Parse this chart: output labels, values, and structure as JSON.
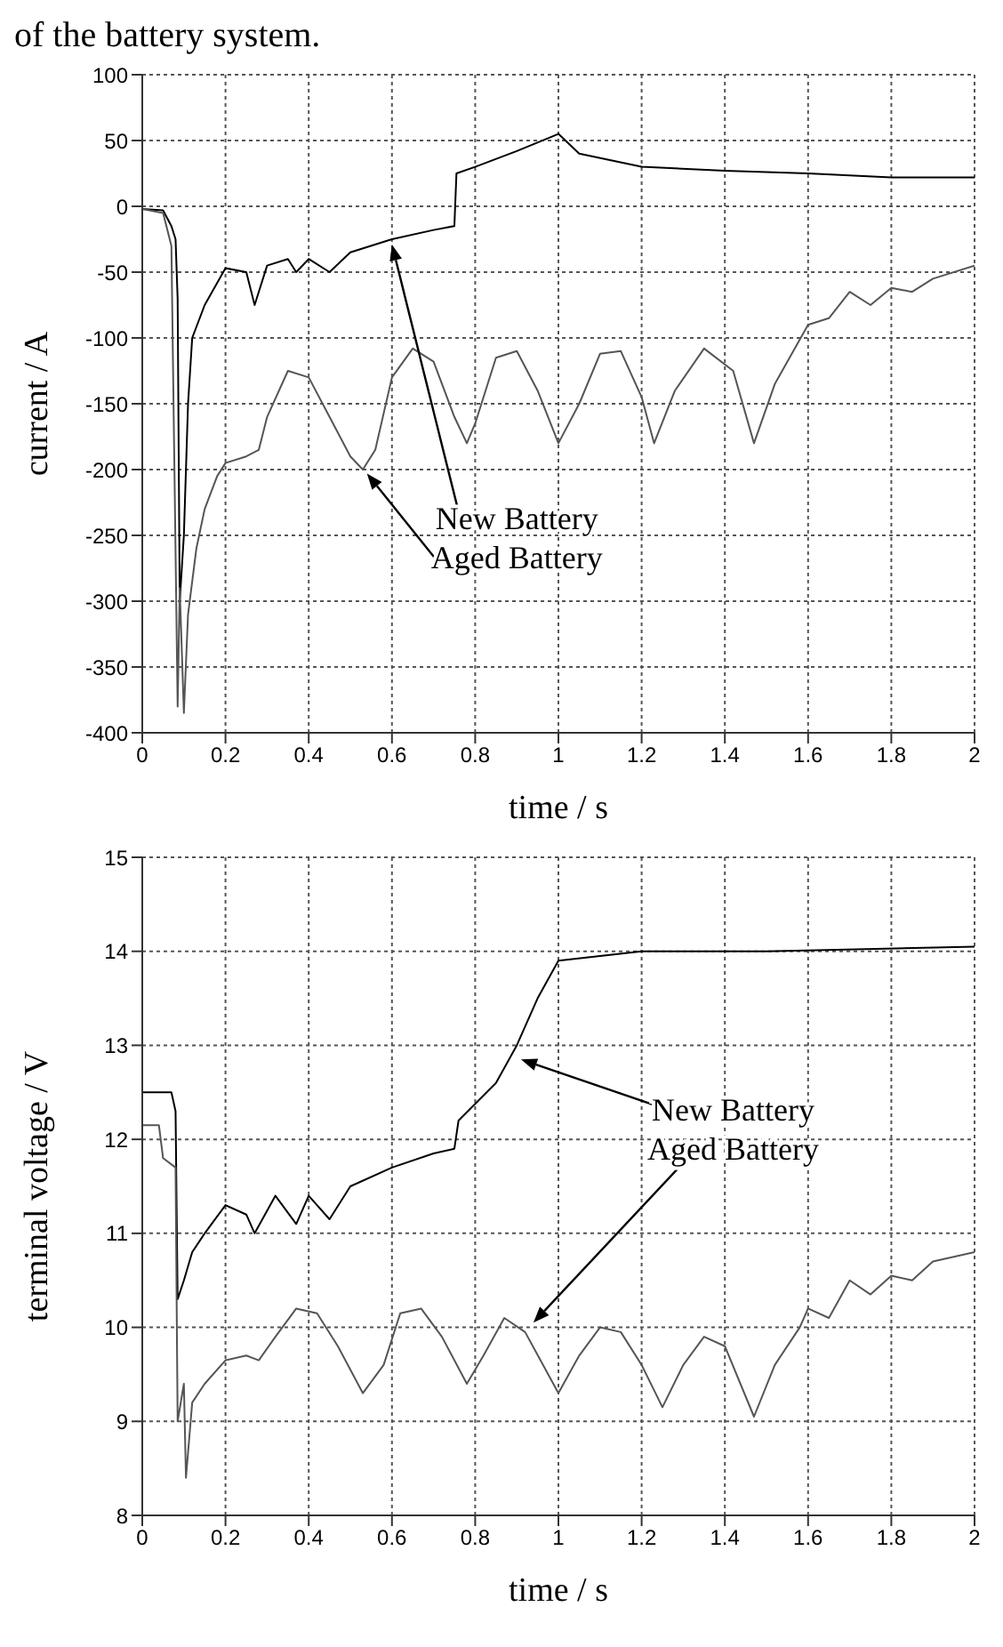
{
  "chart_data": [
    {
      "type": "line",
      "annotations": [
        "of the battery system.",
        "New Battery",
        "Aged Battery"
      ],
      "xlabel": "time / s",
      "ylabel": "current / A",
      "xlim": [
        0,
        2
      ],
      "xticks": [
        0,
        0.2,
        0.4,
        0.6,
        0.8,
        1,
        1.2,
        1.4,
        1.6,
        1.8,
        2
      ],
      "ylim": [
        -400,
        100
      ],
      "yticks": [
        -400,
        -350,
        -300,
        -250,
        -200,
        -150,
        -100,
        -50,
        0,
        50,
        100
      ],
      "grid": true,
      "legend": false,
      "marker": "none",
      "line_style": "solid",
      "series": [
        {
          "color": "#000000",
          "x": [
            0,
            0.05,
            0.07,
            0.08,
            0.085,
            0.09,
            0.1,
            0.11,
            0.12,
            0.15,
            0.2,
            0.25,
            0.27,
            0.3,
            0.35,
            0.37,
            0.4,
            0.45,
            0.5,
            0.6,
            0.7,
            0.75,
            0.755,
            0.8,
            0.9,
            1.0,
            1.05,
            1.2,
            1.4,
            1.6,
            1.8,
            2.0
          ],
          "values": [
            -2,
            -3,
            -15,
            -25,
            -70,
            -300,
            -250,
            -150,
            -100,
            -75,
            -47,
            -50,
            -75,
            -45,
            -40,
            -50,
            -40,
            -50,
            -35,
            -25,
            -18,
            -15,
            25,
            30,
            42,
            55,
            40,
            30,
            27,
            25,
            22,
            22
          ]
        },
        {
          "color": "#555555",
          "x": [
            0,
            0.05,
            0.07,
            0.085,
            0.09,
            0.1,
            0.11,
            0.13,
            0.15,
            0.18,
            0.2,
            0.25,
            0.28,
            0.3,
            0.35,
            0.4,
            0.45,
            0.5,
            0.53,
            0.56,
            0.6,
            0.65,
            0.7,
            0.75,
            0.78,
            0.8,
            0.85,
            0.9,
            0.95,
            1.0,
            1.05,
            1.1,
            1.15,
            1.2,
            1.23,
            1.28,
            1.35,
            1.42,
            1.47,
            1.52,
            1.6,
            1.65,
            1.7,
            1.75,
            1.8,
            1.85,
            1.9,
            2.0
          ],
          "values": [
            -2,
            -5,
            -30,
            -380,
            -290,
            -385,
            -310,
            -260,
            -230,
            -205,
            -195,
            -190,
            -185,
            -160,
            -125,
            -130,
            -160,
            -190,
            -200,
            -185,
            -130,
            -108,
            -118,
            -160,
            -180,
            -165,
            -115,
            -110,
            -140,
            -180,
            -150,
            -112,
            -110,
            -145,
            -180,
            -140,
            -108,
            -125,
            -180,
            -135,
            -90,
            -85,
            -65,
            -75,
            -62,
            -65,
            -55,
            -45
          ]
        }
      ]
    },
    {
      "type": "line",
      "annotations": [
        "New Battery",
        "Aged Battery"
      ],
      "xlabel": "time / s",
      "ylabel": "terminal voltage / V",
      "xlim": [
        0,
        2
      ],
      "xticks": [
        0,
        0.2,
        0.4,
        0.6,
        0.8,
        1,
        1.2,
        1.4,
        1.6,
        1.8,
        2
      ],
      "ylim": [
        8,
        15
      ],
      "yticks": [
        8,
        9,
        10,
        11,
        12,
        13,
        14,
        15
      ],
      "grid": true,
      "legend": false,
      "marker": "none",
      "line_style": "solid",
      "series": [
        {
          "color": "#000000",
          "x": [
            0,
            0.07,
            0.08,
            0.085,
            0.1,
            0.12,
            0.15,
            0.2,
            0.25,
            0.27,
            0.32,
            0.37,
            0.4,
            0.45,
            0.5,
            0.6,
            0.7,
            0.75,
            0.76,
            0.85,
            0.9,
            0.95,
            1.0,
            1.2,
            1.5,
            2.0
          ],
          "values": [
            12.5,
            12.5,
            12.3,
            10.3,
            10.5,
            10.8,
            11.0,
            11.3,
            11.2,
            11.0,
            11.4,
            11.1,
            11.4,
            11.15,
            11.5,
            11.7,
            11.85,
            11.9,
            12.2,
            12.6,
            13.0,
            13.5,
            13.9,
            14.0,
            14.0,
            14.05
          ]
        },
        {
          "color": "#555555",
          "x": [
            0,
            0.04,
            0.05,
            0.08,
            0.085,
            0.1,
            0.105,
            0.12,
            0.15,
            0.2,
            0.25,
            0.28,
            0.32,
            0.37,
            0.42,
            0.47,
            0.53,
            0.58,
            0.62,
            0.67,
            0.72,
            0.78,
            0.82,
            0.87,
            0.92,
            1.0,
            1.05,
            1.1,
            1.15,
            1.2,
            1.25,
            1.3,
            1.35,
            1.4,
            1.47,
            1.52,
            1.58,
            1.6,
            1.65,
            1.7,
            1.75,
            1.8,
            1.85,
            1.9,
            2.0
          ],
          "values": [
            12.15,
            12.15,
            11.8,
            11.7,
            9.0,
            9.4,
            8.4,
            9.2,
            9.4,
            9.65,
            9.7,
            9.65,
            9.9,
            10.2,
            10.15,
            9.8,
            9.3,
            9.6,
            10.15,
            10.2,
            9.9,
            9.4,
            9.7,
            10.1,
            9.95,
            9.3,
            9.7,
            10.0,
            9.95,
            9.6,
            9.15,
            9.6,
            9.9,
            9.8,
            9.05,
            9.6,
            10.0,
            10.2,
            10.1,
            10.5,
            10.35,
            10.55,
            10.5,
            10.7,
            10.8
          ]
        }
      ]
    }
  ]
}
